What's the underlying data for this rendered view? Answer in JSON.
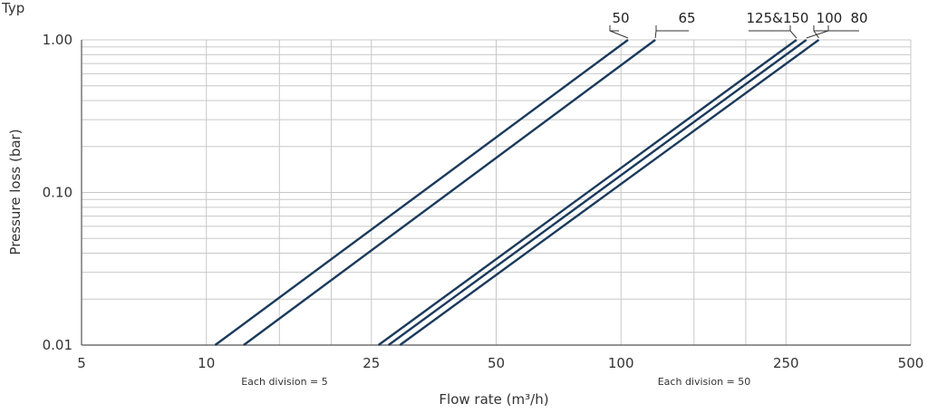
{
  "chart_data": {
    "type": "line",
    "title": "Typ",
    "xlabel": "Flow rate (m³/h)",
    "ylabel": "Pressure loss (bar)",
    "x_scale": "log",
    "y_scale": "log",
    "xlim": [
      5,
      500
    ],
    "ylim": [
      0.01,
      1.0
    ],
    "x_ticks": [
      "5",
      "10",
      "25",
      "50",
      "100",
      "250",
      "500"
    ],
    "y_ticks": [
      "0.01",
      "0.10",
      "1.00"
    ],
    "grid": true,
    "annotations": [
      {
        "text": "Each division = 5"
      },
      {
        "text": "Each division = 50"
      }
    ],
    "series": [
      {
        "name": "50",
        "x": [
          10.5,
          104
        ],
        "y": [
          0.01,
          1.0
        ]
      },
      {
        "name": "65",
        "x": [
          12.3,
          121
        ],
        "y": [
          0.01,
          1.0
        ]
      },
      {
        "name": "125&150",
        "x": [
          26,
          265
        ],
        "y": [
          0.01,
          1.0
        ]
      },
      {
        "name": "100",
        "x": [
          27.5,
          280
        ],
        "y": [
          0.01,
          1.0
        ]
      },
      {
        "name": "80",
        "x": [
          29.3,
          300
        ],
        "y": [
          0.01,
          1.0
        ]
      }
    ],
    "colors": {
      "line": "#1b3a5c",
      "grid": "#c8c8c8",
      "axis": "#555555"
    }
  }
}
